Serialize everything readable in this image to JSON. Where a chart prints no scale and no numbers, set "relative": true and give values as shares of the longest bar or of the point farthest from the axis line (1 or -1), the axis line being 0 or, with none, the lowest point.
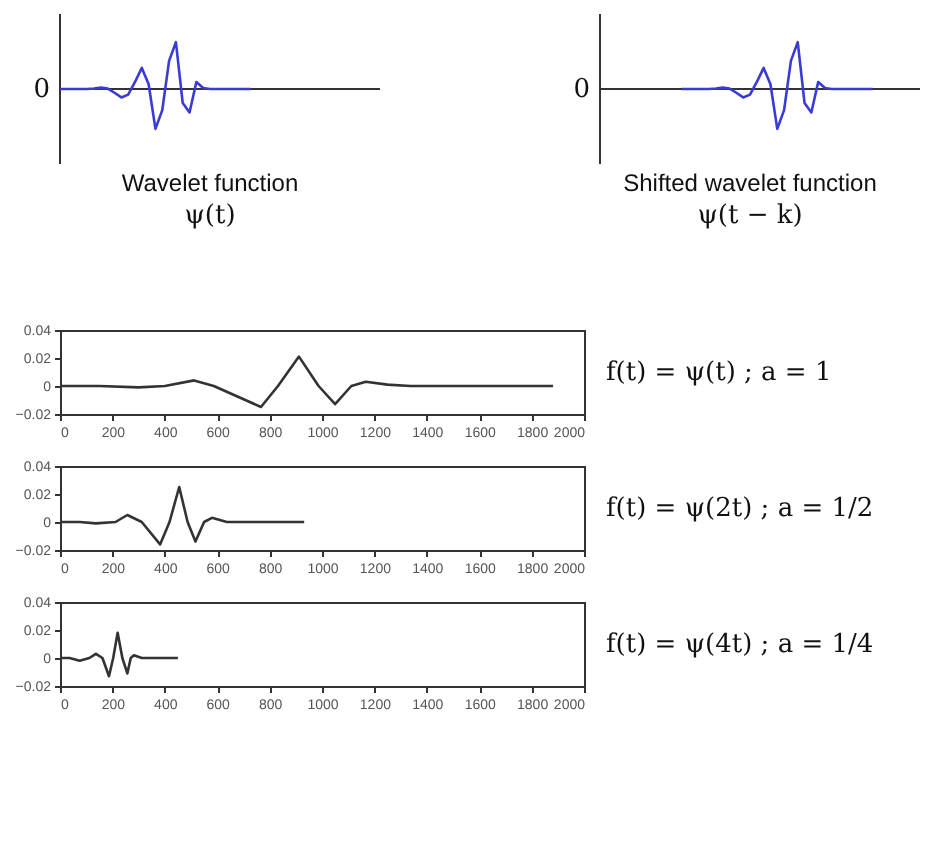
{
  "chart_data": [
    {
      "type": "line",
      "relative": true,
      "title": "Wavelet function",
      "subtitle": "ψ(t)",
      "annotations": [
        "0"
      ],
      "grid": false,
      "categories": [
        null,
        null,
        null,
        null,
        null,
        null,
        null,
        null,
        null,
        null,
        null,
        null,
        null,
        null,
        null,
        null,
        null,
        null,
        null,
        null,
        null,
        null,
        null,
        null,
        null,
        null,
        null,
        null,
        null,
        null,
        null,
        null,
        null,
        null,
        null,
        null,
        null,
        null,
        null,
        null,
        null,
        null,
        null,
        null,
        null
      ],
      "series": [
        {
          "color": "#3a3ad6",
          "values": [
            0,
            0,
            0,
            0,
            0,
            0.01,
            0.03,
            0.01,
            -0.08,
            -0.18,
            -0.12,
            0.15,
            0.45,
            0.1,
            -0.85,
            -0.45,
            0.6,
            1,
            -0.3,
            -0.5,
            0.15,
            0.02,
            0,
            0,
            0,
            0,
            0,
            0,
            0,
            null,
            null,
            null,
            null,
            null,
            null,
            null,
            null,
            null,
            null,
            null,
            null,
            null,
            null,
            null,
            null
          ]
        }
      ]
    },
    {
      "type": "line",
      "relative": true,
      "title": "Shifted wavelet function",
      "subtitle": "ψ(t − k)",
      "annotations": [
        "0"
      ],
      "grid": false,
      "categories": [
        null,
        null,
        null,
        null,
        null,
        null,
        null,
        null,
        null,
        null,
        null,
        null,
        null,
        null,
        null,
        null,
        null,
        null,
        null,
        null,
        null,
        null,
        null,
        null,
        null,
        null,
        null,
        null,
        null,
        null,
        null,
        null,
        null,
        null,
        null,
        null,
        null,
        null,
        null,
        null,
        null,
        null,
        null,
        null,
        null
      ],
      "series": [
        {
          "color": "#3a3ad6",
          "values": [
            null,
            null,
            null,
            null,
            null,
            null,
            null,
            null,
            null,
            null,
            null,
            null,
            0,
            0,
            0,
            0,
            0,
            0.01,
            0.03,
            0.01,
            -0.08,
            -0.18,
            -0.12,
            0.15,
            0.45,
            0.1,
            -0.85,
            -0.45,
            0.6,
            1,
            -0.3,
            -0.5,
            0.15,
            0.02,
            0,
            0,
            0,
            0,
            0,
            0,
            0,
            null,
            null,
            null,
            null
          ]
        }
      ]
    },
    {
      "type": "line",
      "grid": false,
      "annotations": [
        "f(t) = ψ(t)   ;   a = 1"
      ],
      "xlim": [
        0,
        2000
      ],
      "xticks": [
        0,
        200,
        400,
        600,
        800,
        1000,
        1200,
        1400,
        1600,
        1800,
        2000
      ],
      "ylim": [
        -0.02,
        0.04
      ],
      "yticks": [
        -0.02,
        0,
        0.02,
        0.04
      ],
      "series": [
        {
          "color": "#333333",
          "x": [
            0,
            150,
            300,
            400,
            512,
            587,
            767,
            832,
            912,
            987,
            1050,
            1112,
            1167,
            1250,
            1337,
            1882
          ],
          "values": [
            0,
            0,
            -0.001,
            0,
            0.004,
            0,
            -0.015,
            0,
            0.021,
            0,
            -0.013,
            0,
            0.003,
            0.001,
            0,
            0
          ]
        }
      ]
    },
    {
      "type": "line",
      "grid": false,
      "annotations": [
        "f(t) = ψ(2t)  ;   a = 1/2"
      ],
      "xlim": [
        0,
        2000
      ],
      "xticks": [
        0,
        200,
        400,
        600,
        800,
        1000,
        1200,
        1400,
        1600,
        1800,
        2000
      ],
      "ylim": [
        -0.02,
        0.04
      ],
      "yticks": [
        -0.02,
        0,
        0.02,
        0.04
      ],
      "series": [
        {
          "color": "#333333",
          "x": [
            0,
            75,
            137,
            212,
            257,
            312,
            382,
            418,
            455,
            487,
            517,
            550,
            580,
            637,
            932
          ],
          "values": [
            0,
            0,
            -0.001,
            0,
            0.005,
            0,
            -0.016,
            0,
            0.025,
            0,
            -0.014,
            0,
            0.003,
            0,
            0
          ]
        }
      ]
    },
    {
      "type": "line",
      "grid": false,
      "annotations": [
        "f(t) = ψ(4t)  ;   a = 1/4"
      ],
      "xlim": [
        0,
        2000
      ],
      "xticks": [
        0,
        200,
        400,
        600,
        800,
        1000,
        1200,
        1400,
        1600,
        1800,
        2000
      ],
      "ylim": [
        -0.02,
        0.04
      ],
      "yticks": [
        -0.02,
        0,
        0.02,
        0.04
      ],
      "series": [
        {
          "color": "#333333",
          "x": [
            0,
            37,
            75,
            112,
            137,
            162,
            187,
            203,
            220,
            238,
            257,
            270,
            282,
            312,
            450
          ],
          "values": [
            0,
            0,
            -0.002,
            0,
            0.003,
            0,
            -0.013,
            0,
            0.018,
            0,
            -0.011,
            0,
            0.002,
            0,
            0
          ]
        }
      ]
    }
  ]
}
